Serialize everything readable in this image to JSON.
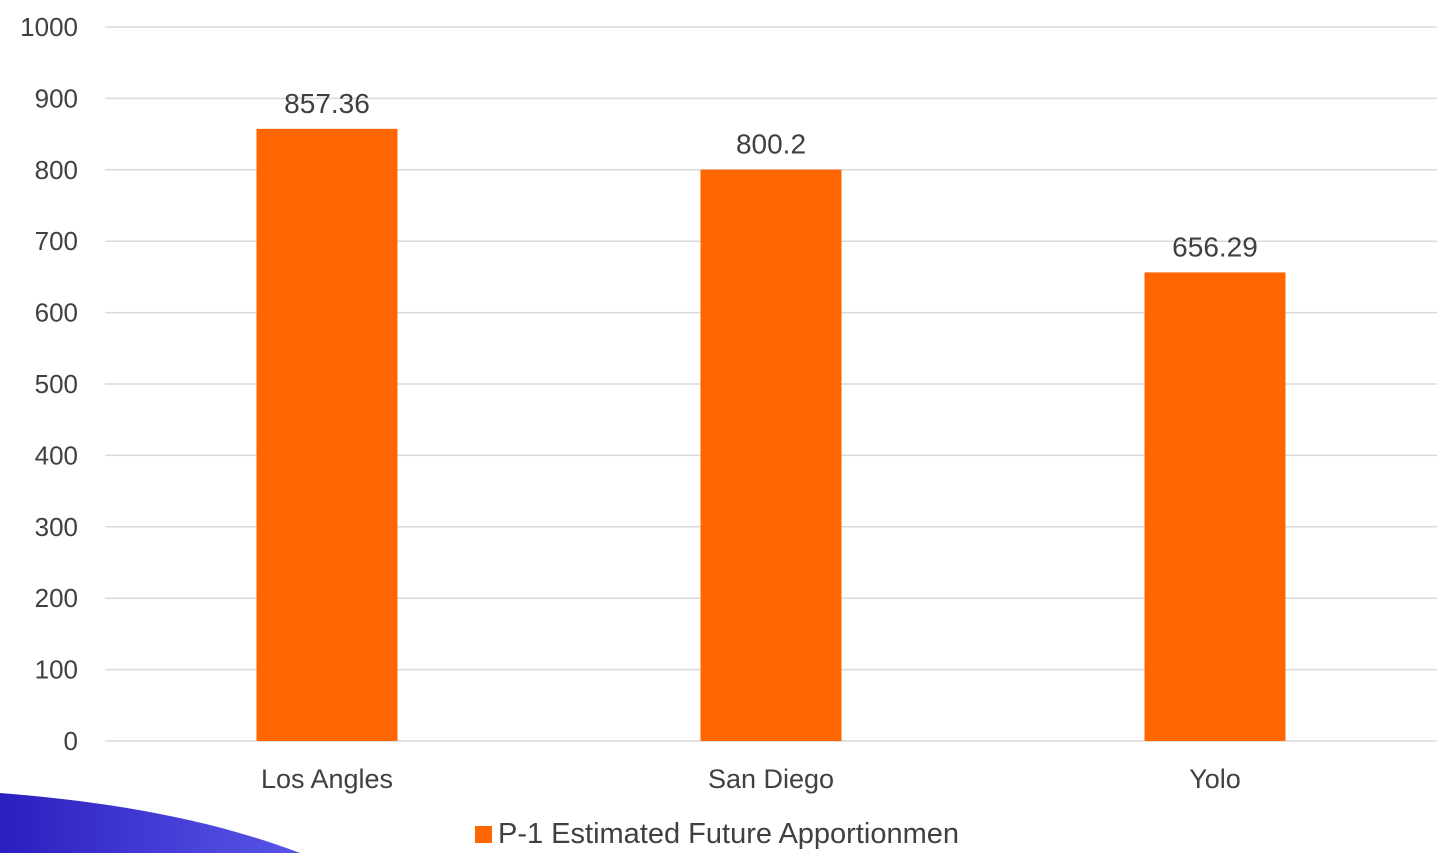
{
  "chart_data": {
    "type": "bar",
    "categories": [
      "Los Angles",
      "San Diego",
      "Yolo"
    ],
    "series": [
      {
        "name": "P-1 Estimated Future Apportionmen",
        "values": [
          857.36,
          800.2,
          656.29
        ],
        "data_labels": [
          "857.36",
          "800.2",
          "656.29"
        ]
      }
    ],
    "ylim": [
      0,
      1000
    ],
    "yticks": [
      0,
      100,
      200,
      300,
      400,
      500,
      600,
      700,
      800,
      900,
      1000
    ],
    "grid": "horizontal",
    "legend_position": "bottom"
  },
  "colors": {
    "bar": "#FF6600",
    "grid": "#d9d9d9",
    "text": "#404040",
    "corner_accent": "#3c2fd6"
  }
}
